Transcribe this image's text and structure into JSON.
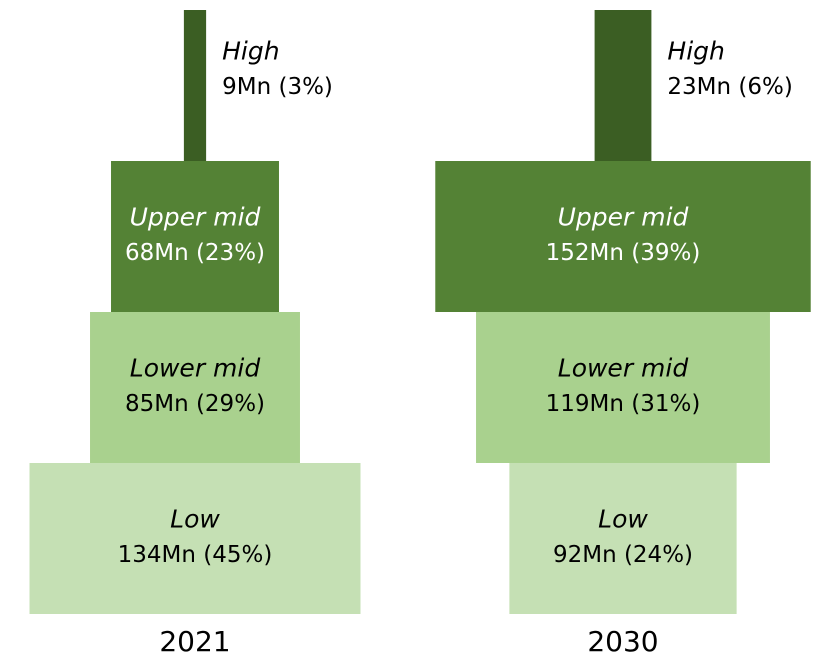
{
  "chart_data": [
    {
      "type": "bar",
      "title": "2021",
      "categories": [
        "High",
        "Upper mid",
        "Lower mid",
        "Low"
      ],
      "values": [
        9,
        68,
        85,
        134
      ],
      "value_labels": [
        "9Mn (3%)",
        "68Mn (23%)",
        "85Mn (29%)",
        "134Mn (45%)"
      ],
      "colors": [
        "#3b5e23",
        "#548235",
        "#a9d18e",
        "#c5e0b4"
      ]
    },
    {
      "type": "bar",
      "title": "2030",
      "categories": [
        "High",
        "Upper mid",
        "Lower mid",
        "Low"
      ],
      "values": [
        23,
        152,
        119,
        92
      ],
      "value_labels": [
        "23Mn (6%)",
        "152Mn (39%)",
        "119Mn (31%)",
        "92Mn (24%)"
      ],
      "colors": [
        "#3b5e23",
        "#548235",
        "#a9d18e",
        "#c5e0b4"
      ]
    }
  ]
}
